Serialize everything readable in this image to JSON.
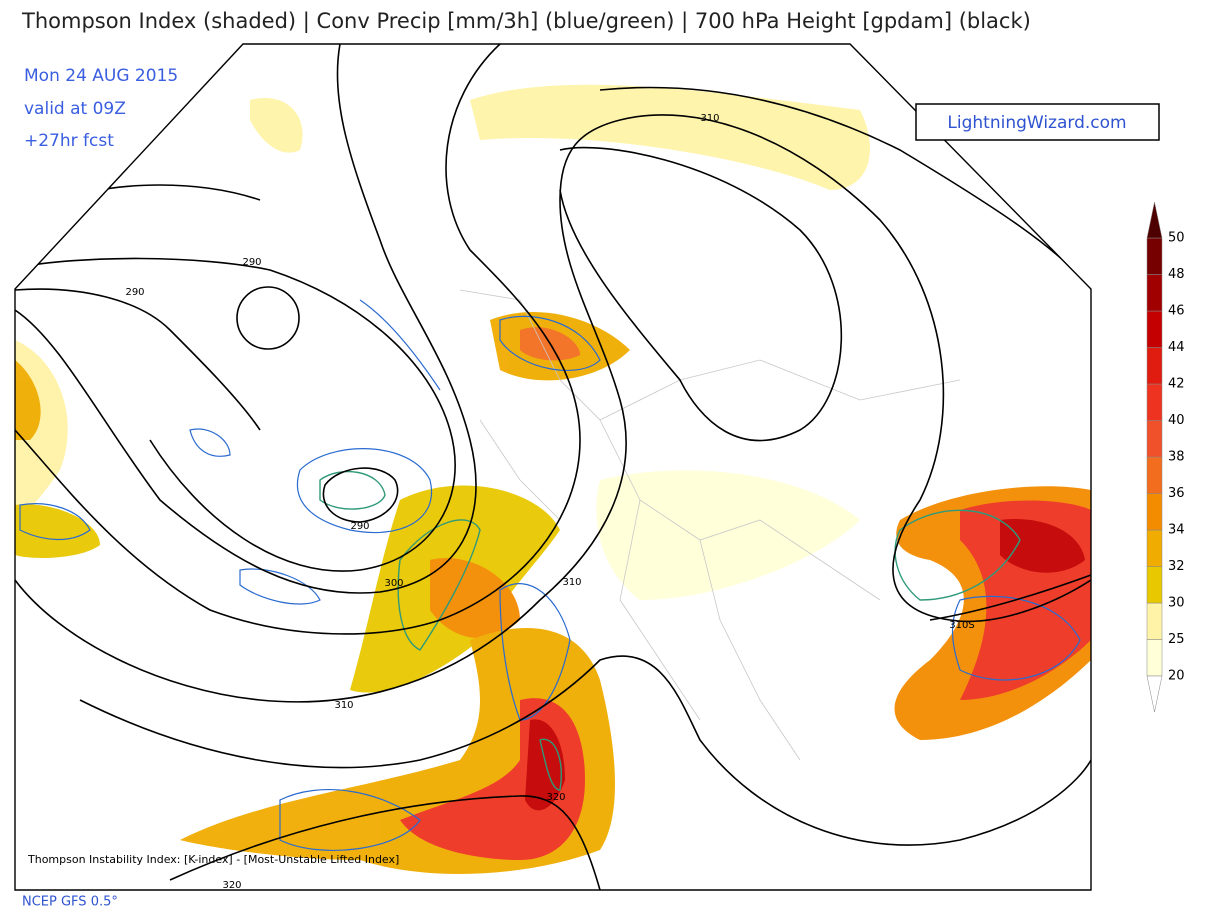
{
  "header": {
    "title": "Thompson Index (shaded) | Conv Precip [mm/3h] (blue/green) | 700 hPa Height [gpdam] (black)"
  },
  "run": {
    "date": "Mon 24 AUG 2015",
    "valid": "valid at 09Z",
    "forecast": "+27hr fcst"
  },
  "brand": "LightningWizard.com",
  "colorbar": {
    "ticks": [
      20,
      25,
      30,
      32,
      34,
      36,
      38,
      40,
      42,
      44,
      46,
      48,
      50
    ],
    "colors": [
      "#ffffd8",
      "#fff3a8",
      "#e8c800",
      "#f0ac00",
      "#f48c00",
      "#f26e1e",
      "#f0502a",
      "#ee3420",
      "#e01c10",
      "#c40000",
      "#a00000",
      "#760000",
      "#4e0000"
    ]
  },
  "contour_labels": [
    "290",
    "290",
    "290",
    "300",
    "310",
    "310",
    "310",
    "310S",
    "320",
    "320"
  ],
  "footer": {
    "legend": "Thompson Instability Index: [K-index] - [Most-Unstable Lifted Index]",
    "source": "NCEP GFS 0.5°"
  }
}
